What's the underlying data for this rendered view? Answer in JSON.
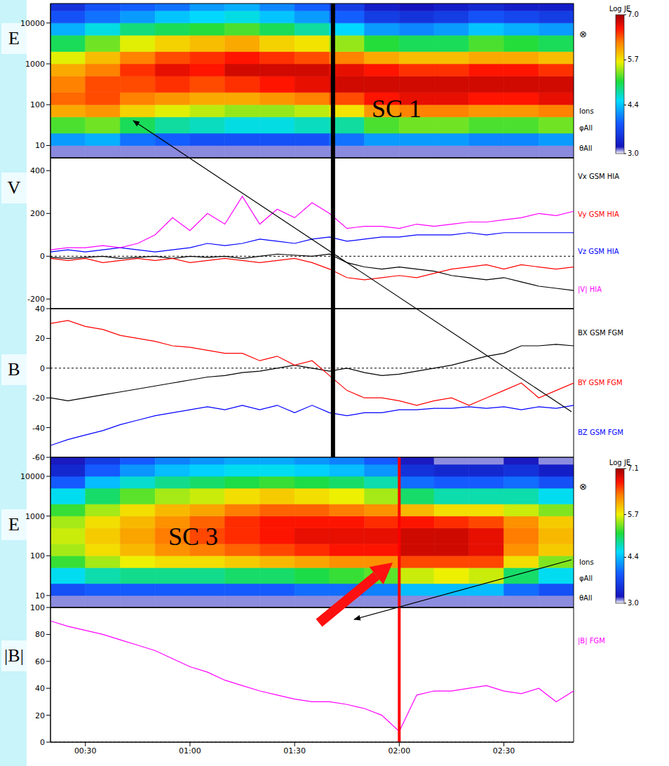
{
  "chart_data": [
    {
      "type": "heatmap",
      "annotation": "SC 1",
      "ylabel": "E",
      "log": "y",
      "tick_labels": "y",
      "xlim": [
        20,
        170
      ],
      "xticks": [
        {
          "value": 30,
          "label": "00:30"
        },
        {
          "value": 60,
          "label": "01:00"
        },
        {
          "value": 90,
          "label": "01:30"
        },
        {
          "value": 120,
          "label": "02:00"
        },
        {
          "value": 150,
          "label": "02:30"
        }
      ],
      "ylim": [
        5,
        30000
      ],
      "yticks": [
        10,
        100,
        1000,
        10000
      ],
      "time_bins": [
        20,
        30,
        40,
        50,
        60,
        70,
        80,
        90,
        100,
        110,
        120,
        130,
        140,
        150,
        160,
        170
      ],
      "energy_bins": [
        5,
        10,
        20,
        50,
        100,
        200,
        500,
        1000,
        2000,
        5000,
        10000,
        20000,
        30000
      ],
      "cells": [
        [
          3.1,
          4.2,
          5.2,
          6.0,
          6.3,
          6.2,
          6.0,
          5.6,
          5.0,
          4.3,
          3.8,
          3.5
        ],
        [
          3.1,
          4.3,
          5.3,
          6.1,
          6.4,
          6.4,
          6.2,
          5.9,
          5.3,
          4.6,
          4.0,
          3.8
        ],
        [
          3.1,
          4.0,
          5.0,
          5.8,
          6.2,
          6.4,
          6.5,
          6.2,
          5.6,
          4.9,
          4.2,
          3.9
        ],
        [
          3.1,
          3.9,
          4.8,
          5.6,
          6.1,
          6.5,
          6.7,
          6.4,
          5.8,
          5.0,
          4.4,
          4.0
        ],
        [
          3.1,
          3.8,
          4.7,
          5.5,
          6.0,
          6.4,
          6.6,
          6.5,
          5.9,
          5.1,
          4.5,
          4.2
        ],
        [
          3.1,
          3.8,
          4.6,
          5.4,
          6.0,
          6.5,
          6.8,
          6.6,
          6.0,
          5.2,
          4.6,
          4.3
        ],
        [
          3.1,
          3.8,
          4.6,
          5.4,
          6.1,
          6.6,
          6.8,
          6.5,
          5.8,
          5.0,
          4.4,
          4.1
        ],
        [
          3.1,
          3.8,
          4.7,
          5.5,
          6.2,
          6.7,
          6.8,
          6.4,
          5.7,
          4.8,
          4.2,
          3.9
        ],
        [
          3.1,
          4.0,
          4.8,
          5.7,
          6.4,
          6.8,
          6.7,
          6.2,
          5.4,
          4.5,
          3.9,
          3.6
        ],
        [
          3.1,
          4.2,
          5.2,
          6.1,
          6.6,
          6.8,
          6.6,
          6.0,
          5.1,
          4.2,
          3.6,
          3.3
        ],
        [
          3.1,
          4.2,
          5.3,
          6.2,
          6.7,
          6.8,
          6.5,
          5.9,
          5.0,
          4.1,
          3.5,
          3.2
        ],
        [
          3.1,
          4.2,
          5.3,
          6.2,
          6.7,
          6.8,
          6.5,
          5.9,
          5.0,
          4.2,
          3.6,
          3.3
        ],
        [
          3.1,
          4.1,
          5.2,
          6.1,
          6.6,
          6.8,
          6.6,
          6.0,
          5.2,
          4.4,
          3.8,
          3.4
        ],
        [
          3.1,
          4.1,
          5.2,
          6.1,
          6.6,
          6.8,
          6.6,
          6.0,
          5.1,
          4.3,
          3.7,
          3.3
        ],
        [
          3.1,
          4.2,
          5.3,
          6.2,
          6.7,
          6.8,
          6.5,
          5.9,
          5.0,
          4.2,
          3.6,
          3.3
        ]
      ],
      "colorbar": {
        "title": "Log JE",
        "range": [
          3,
          7
        ],
        "ticks": [
          {
            "value": 3,
            "label": "3.0"
          },
          4.4,
          5.7,
          {
            "value": 7,
            "label": "7.0"
          }
        ]
      },
      "labels": [
        "⊗",
        "Ions",
        "φAll",
        "θAll"
      ],
      "vline": {
        "x": 101,
        "color": "#000000"
      }
    },
    {
      "type": "line",
      "ylabel": "V",
      "tick_labels": "y",
      "legend": "right",
      "xlim": [
        20,
        170
      ],
      "xticks": [
        {
          "value": 30,
          "label": "00:30"
        },
        {
          "value": 60,
          "label": "01:00"
        },
        {
          "value": 90,
          "label": "01:30"
        },
        {
          "value": 120,
          "label": "02:00"
        },
        {
          "value": 150,
          "label": "02:30"
        }
      ],
      "ylim": [
        -245,
        460
      ],
      "yticks": [
        -200,
        0,
        200,
        400
      ],
      "x": [
        20,
        25,
        30,
        35,
        40,
        45,
        50,
        55,
        60,
        65,
        70,
        75,
        80,
        85,
        90,
        95,
        100,
        105,
        110,
        115,
        120,
        125,
        130,
        135,
        140,
        145,
        150,
        155,
        160,
        165,
        170
      ],
      "series": [
        {
          "name": "Vx GSM HIA",
          "color": "#000000",
          "values": [
            -5,
            -10,
            -5,
            0,
            -10,
            -5,
            0,
            -10,
            0,
            -5,
            0,
            -10,
            0,
            10,
            5,
            0,
            10,
            -30,
            -50,
            -60,
            -50,
            -60,
            -70,
            -90,
            -100,
            -110,
            -100,
            -120,
            -140,
            -150,
            -160
          ]
        },
        {
          "name": "Vy GSM HIA",
          "color": "#ff0000",
          "values": [
            -10,
            -20,
            -10,
            -30,
            -20,
            -10,
            -20,
            -10,
            -30,
            -20,
            -10,
            -20,
            -30,
            -20,
            -10,
            -30,
            -60,
            -100,
            -110,
            -100,
            -90,
            -100,
            -80,
            -60,
            -50,
            -40,
            -60,
            -40,
            -50,
            -60,
            -50
          ]
        },
        {
          "name": "Vz GSM HIA",
          "color": "#0000ff",
          "values": [
            20,
            30,
            20,
            30,
            40,
            30,
            20,
            30,
            40,
            60,
            50,
            60,
            80,
            70,
            60,
            80,
            90,
            70,
            80,
            90,
            90,
            100,
            100,
            100,
            110,
            100,
            110,
            110,
            110,
            110,
            110
          ]
        },
        {
          "name": "|V| HIA",
          "color": "#ff00ff",
          "values": [
            30,
            40,
            40,
            50,
            40,
            60,
            100,
            180,
            120,
            200,
            150,
            280,
            150,
            220,
            180,
            250,
            200,
            130,
            140,
            140,
            130,
            150,
            140,
            150,
            160,
            160,
            170,
            180,
            200,
            190,
            210
          ]
        }
      ],
      "hline": 0,
      "vline": {
        "x": 101,
        "color": "#000000"
      }
    },
    {
      "type": "line",
      "ylabel": "B",
      "tick_labels": "y",
      "legend": "right",
      "xlim": [
        20,
        170
      ],
      "xticks": [
        {
          "value": 30,
          "label": "00:30"
        },
        {
          "value": 60,
          "label": "01:00"
        },
        {
          "value": 90,
          "label": "01:30"
        },
        {
          "value": 120,
          "label": "02:00"
        },
        {
          "value": 150,
          "label": "02:30"
        }
      ],
      "ylim": [
        -60,
        40
      ],
      "yticks": [
        -60,
        -40,
        -20,
        0,
        20,
        40
      ],
      "x": [
        20,
        25,
        30,
        35,
        40,
        45,
        50,
        55,
        60,
        65,
        70,
        75,
        80,
        85,
        90,
        95,
        100,
        105,
        110,
        115,
        120,
        125,
        130,
        135,
        140,
        145,
        150,
        155,
        160,
        165,
        170
      ],
      "series": [
        {
          "name": "BX GSM FGM",
          "color": "#000000",
          "values": [
            -20,
            -22,
            -20,
            -18,
            -16,
            -14,
            -12,
            -10,
            -8,
            -6,
            -5,
            -3,
            -2,
            0,
            2,
            0,
            -2,
            0,
            -3,
            -5,
            -4,
            -2,
            0,
            2,
            5,
            8,
            10,
            15,
            15,
            16,
            15
          ]
        },
        {
          "name": "BY GSM FGM",
          "color": "#ff0000",
          "values": [
            30,
            32,
            28,
            26,
            22,
            20,
            18,
            15,
            14,
            12,
            10,
            10,
            5,
            8,
            2,
            5,
            -5,
            -15,
            -20,
            -20,
            -22,
            -25,
            -22,
            -20,
            -25,
            -20,
            -15,
            -10,
            -20,
            -15,
            -10
          ]
        },
        {
          "name": "BZ GSM FGM",
          "color": "#0000ff",
          "values": [
            -52,
            -48,
            -45,
            -42,
            -38,
            -35,
            -32,
            -30,
            -28,
            -26,
            -28,
            -25,
            -28,
            -25,
            -30,
            -25,
            -30,
            -32,
            -30,
            -30,
            -28,
            -28,
            -27,
            -27,
            -26,
            -27,
            -26,
            -28,
            -26,
            -27,
            -25
          ]
        }
      ],
      "hline": 0,
      "vline": {
        "x": 101,
        "color": "#000000"
      }
    },
    {
      "type": "heatmap",
      "annotation": "SC 3",
      "ylabel": "E",
      "log": "y",
      "tick_labels": "y",
      "xlim": [
        20,
        170
      ],
      "xticks": [
        {
          "value": 30,
          "label": "00:30"
        },
        {
          "value": 60,
          "label": "01:00"
        },
        {
          "value": 90,
          "label": "01:30"
        },
        {
          "value": 120,
          "label": "02:00"
        },
        {
          "value": 150,
          "label": "02:30"
        }
      ],
      "ylim": [
        5,
        30000
      ],
      "yticks": [
        10,
        100,
        1000,
        10000
      ],
      "time_bins": [
        20,
        30,
        40,
        50,
        60,
        70,
        80,
        90,
        100,
        110,
        120,
        130,
        140,
        150,
        160,
        170
      ],
      "energy_bins": [
        5,
        10,
        20,
        50,
        100,
        200,
        500,
        1000,
        2000,
        5000,
        10000,
        20000,
        30000
      ],
      "cells": [
        [
          3.1,
          3.8,
          4.6,
          5.2,
          5.5,
          5.6,
          5.5,
          5.2,
          4.6,
          3.9,
          3.4,
          3.2
        ],
        [
          3.1,
          3.9,
          4.8,
          5.5,
          5.8,
          5.9,
          5.8,
          5.5,
          5.0,
          4.4,
          3.9,
          3.6
        ],
        [
          3.1,
          3.9,
          4.9,
          5.7,
          6.0,
          6.1,
          6.0,
          5.8,
          5.3,
          4.7,
          4.2,
          3.9
        ],
        [
          3.1,
          3.9,
          4.9,
          5.8,
          6.2,
          6.3,
          6.2,
          6.0,
          5.5,
          4.9,
          4.4,
          4.1
        ],
        [
          3.1,
          3.9,
          4.9,
          5.8,
          6.3,
          6.5,
          6.4,
          6.1,
          5.6,
          5.0,
          4.5,
          4.2
        ],
        [
          3.1,
          3.9,
          5.0,
          5.9,
          6.4,
          6.6,
          6.6,
          6.3,
          5.8,
          5.1,
          4.6,
          4.3
        ],
        [
          3.1,
          3.9,
          5.0,
          6.0,
          6.5,
          6.7,
          6.7,
          6.4,
          5.9,
          5.2,
          4.6,
          4.3
        ],
        [
          3.1,
          4.0,
          5.1,
          6.1,
          6.6,
          6.8,
          6.7,
          6.4,
          5.8,
          5.1,
          4.5,
          4.2
        ],
        [
          3.1,
          4.0,
          5.2,
          6.2,
          6.7,
          6.8,
          6.7,
          6.3,
          5.7,
          5.0,
          4.4,
          4.1
        ],
        [
          3.1,
          4.1,
          5.3,
          6.2,
          6.7,
          6.8,
          6.6,
          6.2,
          5.5,
          4.8,
          4.2,
          3.9
        ],
        [
          3.1,
          4.4,
          5.6,
          6.5,
          6.9,
          6.9,
          6.7,
          6.0,
          5.0,
          4.0,
          3.5,
          3.2
        ],
        [
          3.1,
          4.4,
          5.7,
          6.5,
          6.9,
          6.9,
          6.6,
          5.8,
          4.8,
          3.9,
          3.4,
          3.1
        ],
        [
          3.1,
          4.4,
          5.6,
          6.5,
          6.8,
          6.8,
          6.5,
          5.8,
          4.8,
          3.9,
          3.4,
          3.1
        ],
        [
          3.1,
          4.0,
          5.0,
          5.8,
          6.2,
          6.3,
          6.2,
          5.6,
          4.8,
          4.0,
          3.5,
          3.2
        ],
        [
          3.1,
          3.8,
          4.6,
          5.4,
          5.9,
          6.0,
          5.9,
          5.4,
          4.6,
          3.8,
          3.3,
          3.1
        ]
      ],
      "colorbar": {
        "title": "Log JE",
        "range": [
          3,
          7.1
        ],
        "ticks": [
          {
            "value": 3,
            "label": "3.0"
          },
          4.4,
          5.7,
          7.1
        ]
      },
      "labels": [
        "⊗",
        "Ions",
        "φAll",
        "θAll"
      ],
      "vline": {
        "x": 120,
        "color": "#ff0000"
      }
    },
    {
      "type": "line",
      "ylabel": "|B|",
      "legend": "right",
      "xlim": [
        20,
        170
      ],
      "xticks": [
        {
          "value": 30,
          "label": "00:30"
        },
        {
          "value": 60,
          "label": "01:00"
        },
        {
          "value": 90,
          "label": "01:30"
        },
        {
          "value": 120,
          "label": "02:00"
        },
        {
          "value": 150,
          "label": "02:30"
        }
      ],
      "ylim": [
        0,
        100
      ],
      "yticks": [
        0,
        20,
        40,
        60,
        80,
        100
      ],
      "x": [
        20,
        25,
        30,
        35,
        40,
        45,
        50,
        55,
        60,
        65,
        70,
        75,
        80,
        85,
        90,
        95,
        100,
        105,
        110,
        115,
        120,
        125,
        130,
        135,
        140,
        145,
        150,
        155,
        160,
        165,
        170
      ],
      "series": [
        {
          "name": "|B| FGM",
          "color": "#ff00ff",
          "values": [
            90,
            86,
            83,
            80,
            76,
            72,
            68,
            62,
            56,
            52,
            46,
            42,
            38,
            35,
            32,
            30,
            30,
            28,
            25,
            20,
            8,
            35,
            38,
            38,
            40,
            42,
            38,
            36,
            40,
            30,
            38
          ]
        }
      ],
      "hline": 0,
      "vline": {
        "x": 120,
        "color": "#ff0000"
      }
    }
  ]
}
